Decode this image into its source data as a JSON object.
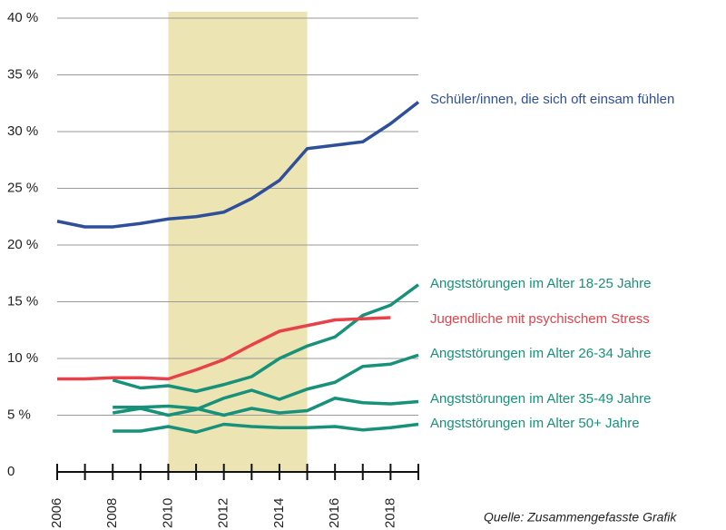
{
  "chart_data": {
    "type": "line",
    "x": [
      2006,
      2007,
      2008,
      2009,
      2010,
      2011,
      2012,
      2013,
      2014,
      2015,
      2016,
      2017,
      2018,
      2019
    ],
    "xlim": [
      2006,
      2019
    ],
    "xticks": [
      2006,
      2008,
      2010,
      2012,
      2014,
      2016,
      2018
    ],
    "xminor_ticks": [
      2007,
      2009,
      2011,
      2013,
      2015,
      2017,
      2019
    ],
    "ylim": [
      0,
      40
    ],
    "yticks": [
      0,
      {
        "value": 5,
        "label": "5 %"
      },
      {
        "value": 10,
        "label": "10 %"
      },
      {
        "value": 15,
        "label": "15 %"
      },
      {
        "value": 20,
        "label": "20 %"
      },
      {
        "value": 25,
        "label": "25 %"
      },
      {
        "value": 30,
        "label": "30 %"
      },
      {
        "value": 35,
        "label": "35 %"
      },
      {
        "value": 40,
        "label": "40 %"
      }
    ],
    "grid": true,
    "highlight": {
      "range": [
        2010,
        2015
      ],
      "color": "#ede4b4"
    },
    "series": [
      {
        "name": "Schüler/innen, die sich oft einsam fühlen",
        "color": "#2e4f9a",
        "values": [
          22.1,
          21.6,
          21.6,
          21.9,
          22.3,
          22.5,
          22.9,
          24.1,
          25.7,
          28.5,
          28.8,
          29.1,
          30.7,
          32.6
        ]
      },
      {
        "name": "Angststörungen im Alter 18-25 Jahre",
        "color": "#17917a",
        "values": [
          null,
          null,
          8.1,
          7.4,
          7.6,
          7.1,
          7.7,
          8.4,
          10.0,
          11.1,
          11.9,
          13.8,
          14.7,
          16.5
        ]
      },
      {
        "name": "Jugendliche mit psychischem Stress",
        "color": "#e8414a",
        "values": [
          8.2,
          8.2,
          8.3,
          8.3,
          8.2,
          9.0,
          9.9,
          11.2,
          12.4,
          12.9,
          13.4,
          13.5,
          13.6,
          null
        ]
      },
      {
        "name": "Angststörungen im Alter 26-34 Jahre",
        "color": "#17917a",
        "values": [
          null,
          null,
          5.2,
          5.6,
          5.0,
          5.5,
          6.5,
          7.2,
          6.4,
          7.3,
          7.9,
          9.3,
          9.5,
          10.3
        ]
      },
      {
        "name": "Angststörungen im Alter 35-49 Jahre",
        "color": "#17917a",
        "values": [
          null,
          null,
          5.7,
          5.7,
          5.8,
          5.6,
          5.0,
          5.6,
          5.2,
          5.4,
          6.5,
          6.1,
          6.0,
          6.2
        ]
      },
      {
        "name": "Angststörungen im Alter 50+ Jahre",
        "color": "#17917a",
        "values": [
          null,
          null,
          3.6,
          3.6,
          4.0,
          3.5,
          4.2,
          4.0,
          3.9,
          3.9,
          4.0,
          3.7,
          3.9,
          4.2
        ]
      }
    ],
    "source": "Quelle: Zusammengefasste Grafik"
  }
}
